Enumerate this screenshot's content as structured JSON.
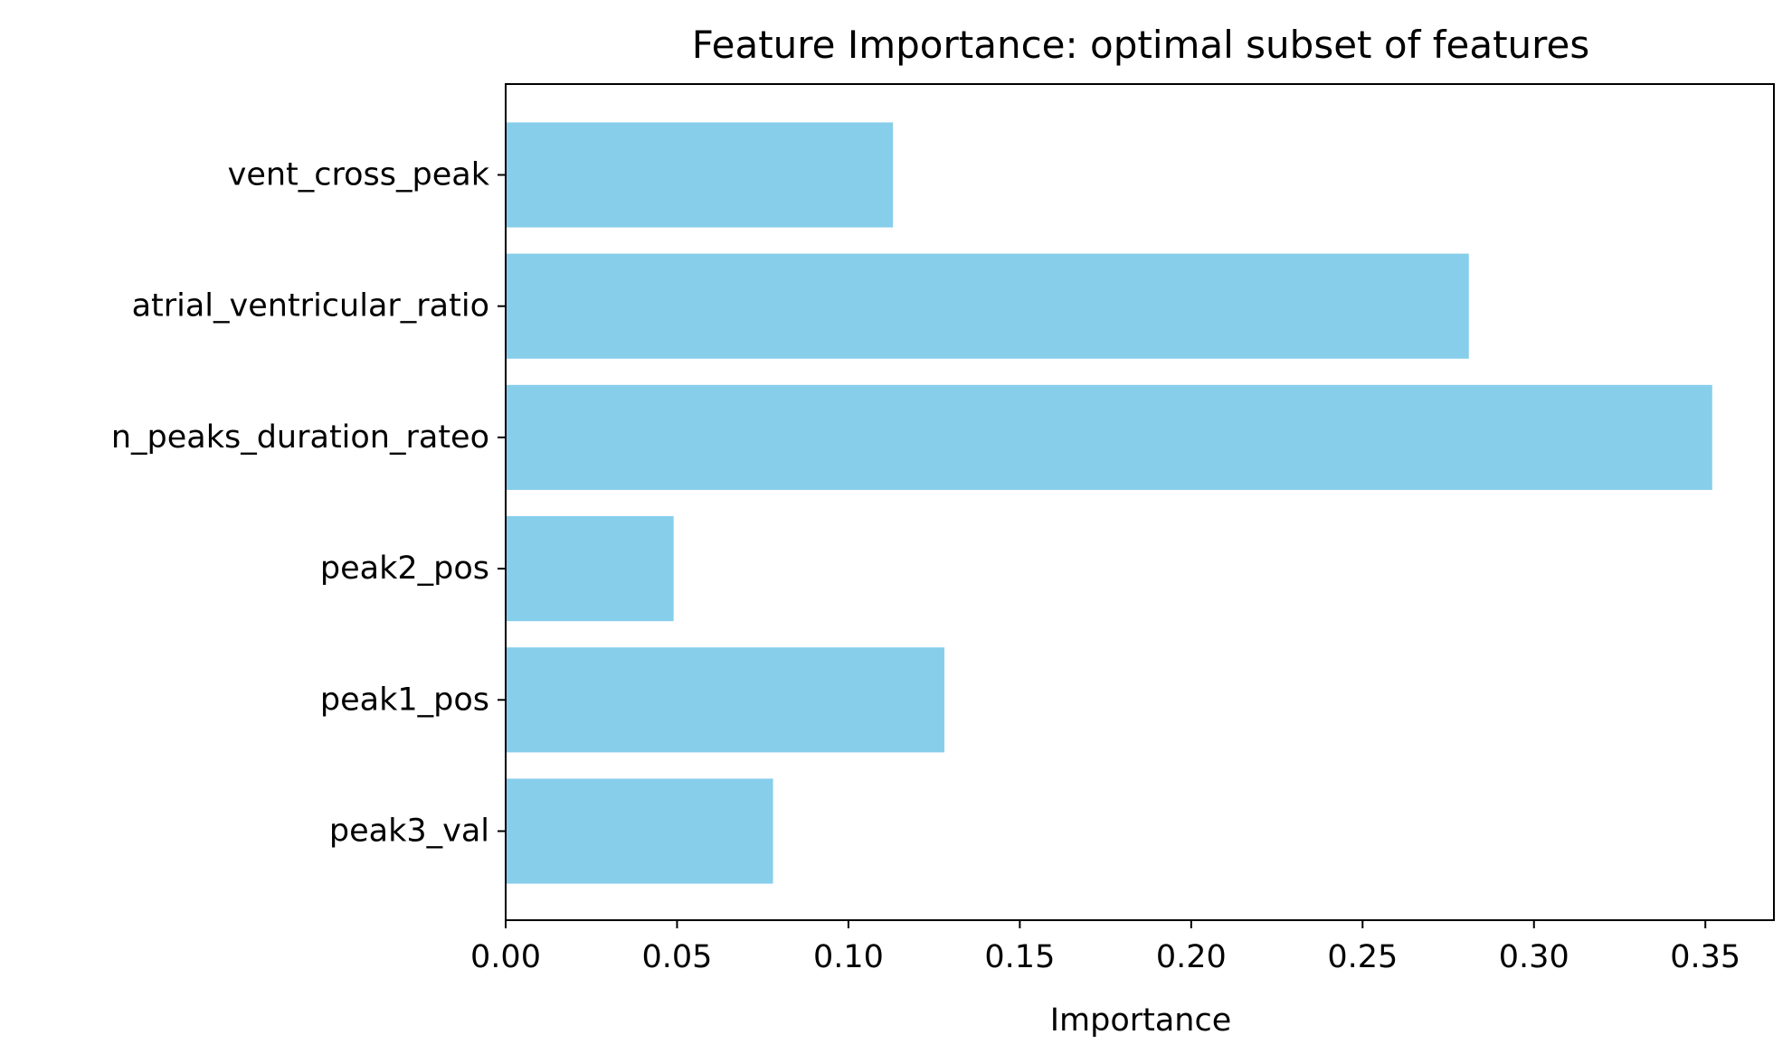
{
  "chart_data": {
    "type": "bar",
    "orientation": "horizontal",
    "title": "Feature Importance: optimal subset of features",
    "xlabel": "Importance",
    "ylabel": "",
    "xlim": [
      0,
      0.37
    ],
    "xticks": [
      "0.00",
      "0.05",
      "0.10",
      "0.15",
      "0.20",
      "0.25",
      "0.30",
      "0.35"
    ],
    "xtick_values": [
      0,
      0.05,
      0.1,
      0.15,
      0.2,
      0.25,
      0.3,
      0.35
    ],
    "categories": [
      "vent_cross_peak",
      "atrial_ventricular_ratio",
      "n_peaks_duration_rateo",
      "peak2_pos",
      "peak1_pos",
      "peak3_val"
    ],
    "values": [
      0.113,
      0.281,
      0.352,
      0.049,
      0.128,
      0.078
    ],
    "bar_color": "#87CEEB",
    "grid": false,
    "legend": "none"
  }
}
